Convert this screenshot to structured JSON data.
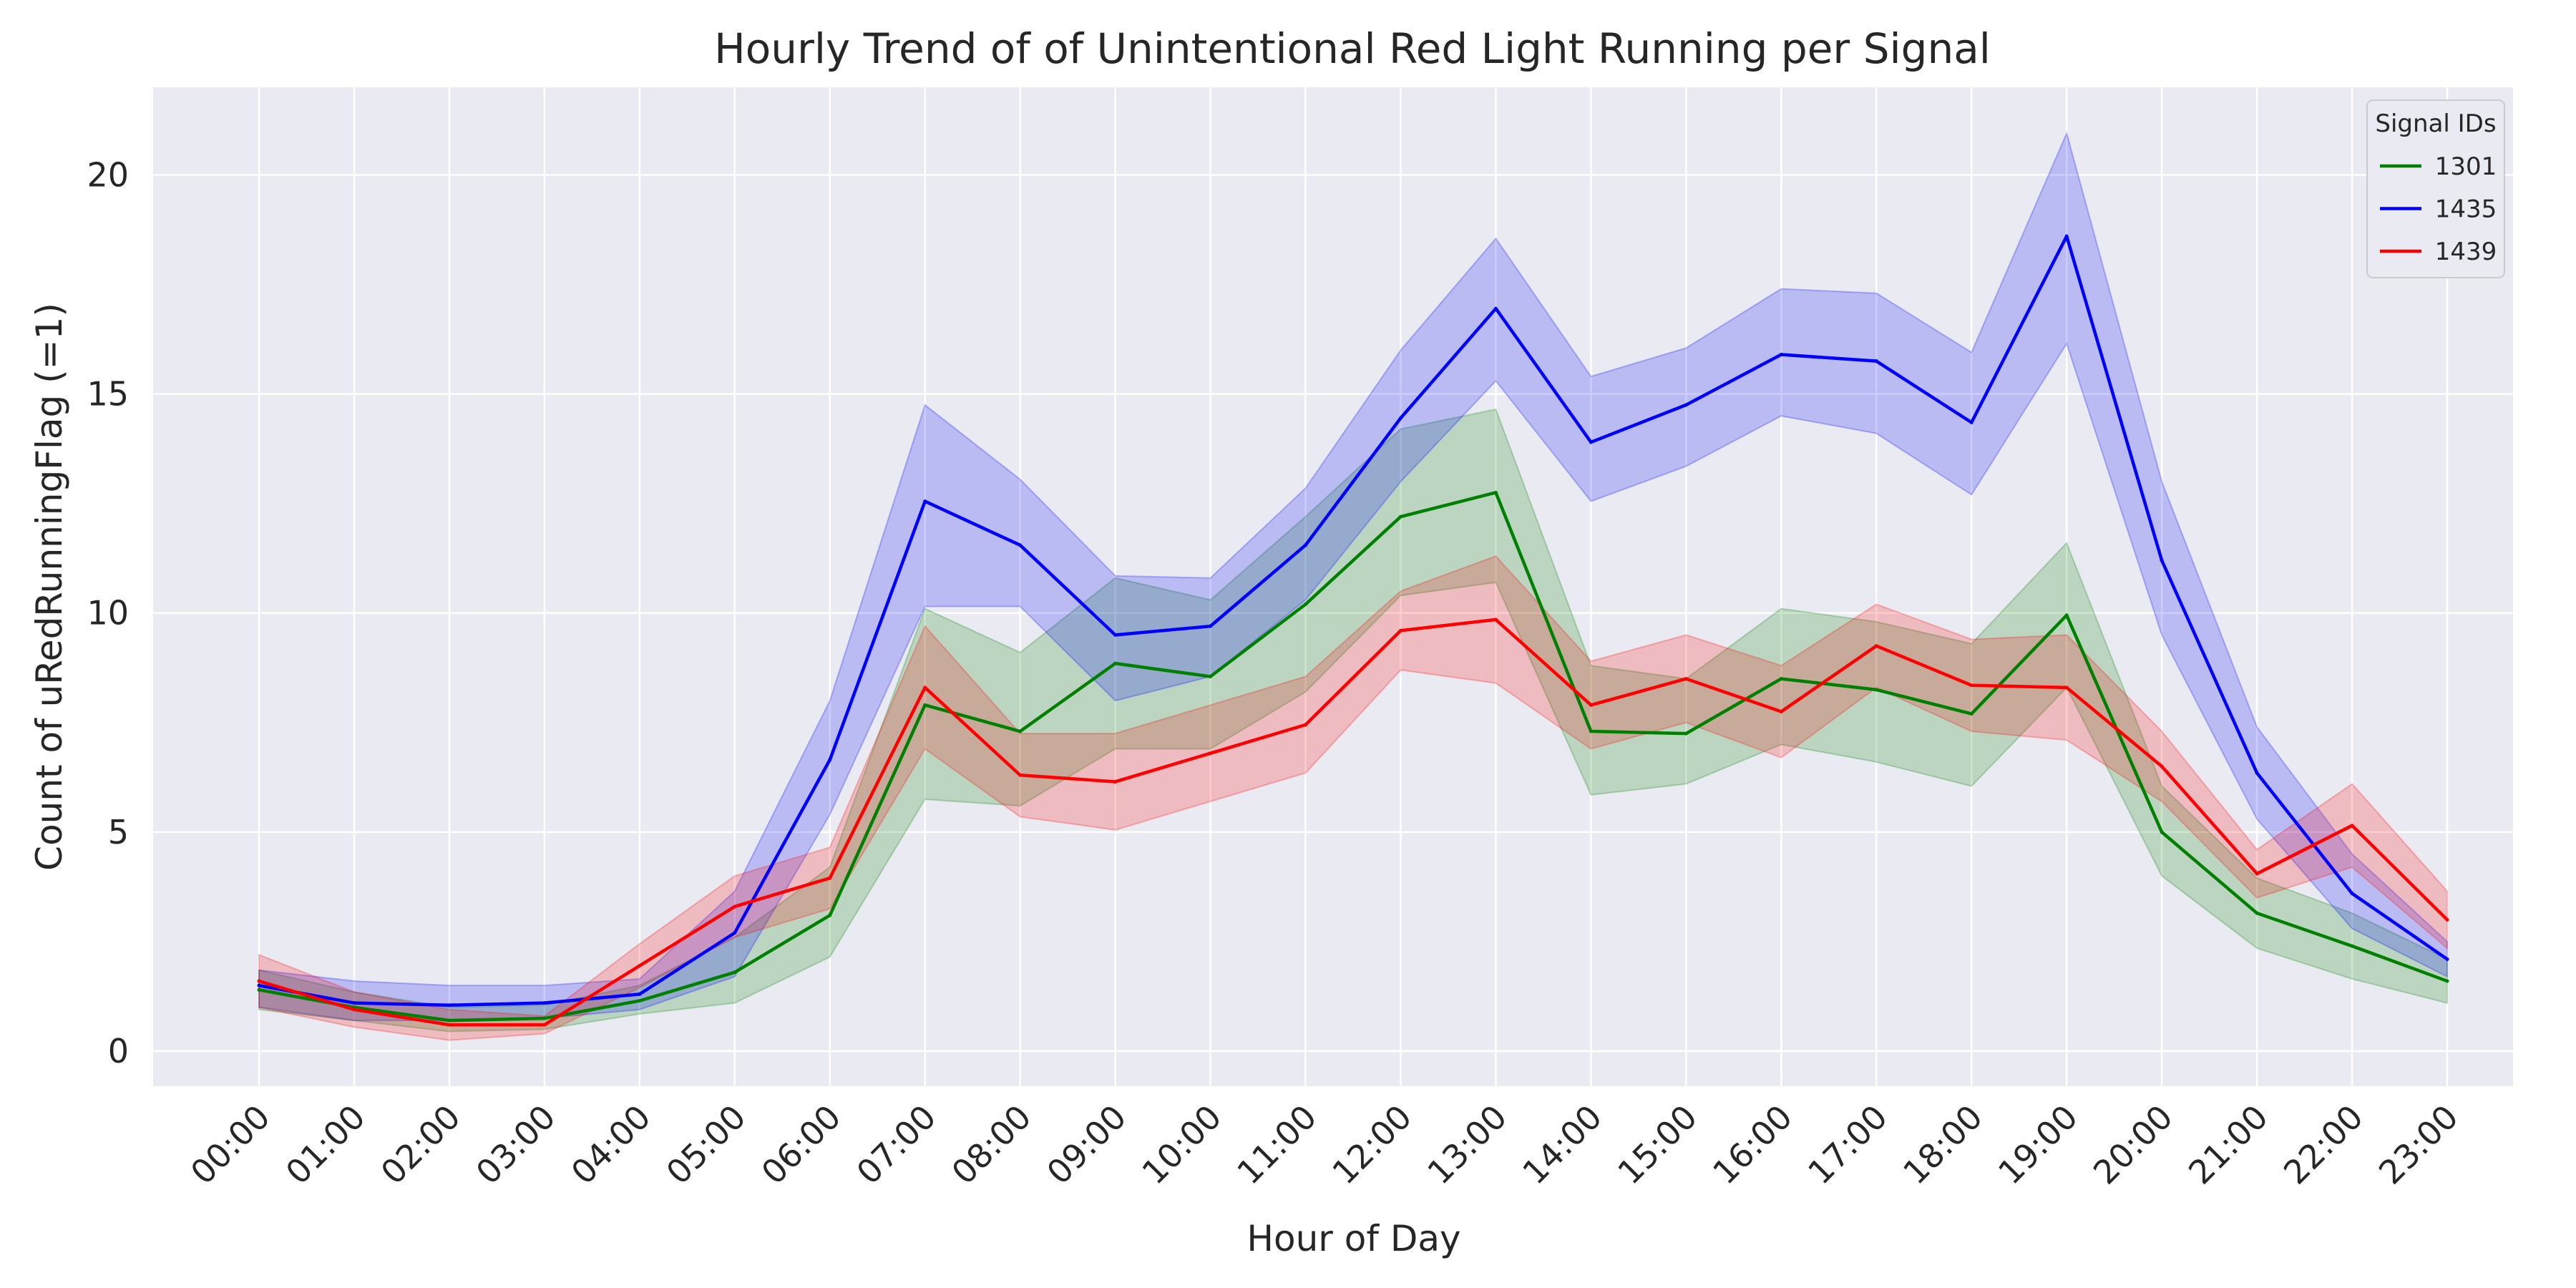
{
  "chart_data": {
    "type": "line",
    "title": "Hourly Trend of of Unintentional Red Light Running per Signal",
    "xlabel": "Hour of Day",
    "ylabel": "Count of uRedRunningFlag (=1)",
    "categories": [
      "00:00",
      "01:00",
      "02:00",
      "03:00",
      "04:00",
      "05:00",
      "06:00",
      "07:00",
      "08:00",
      "09:00",
      "10:00",
      "11:00",
      "12:00",
      "13:00",
      "14:00",
      "15:00",
      "16:00",
      "17:00",
      "18:00",
      "19:00",
      "20:00",
      "21:00",
      "22:00",
      "23:00"
    ],
    "yticks": [
      "0",
      "5",
      "10",
      "15",
      "20"
    ],
    "ylim": [
      -0.8,
      22
    ],
    "grid": true,
    "legend": {
      "title": "Signal IDs",
      "placement": "top-right"
    },
    "series": [
      {
        "name": "1301",
        "color": "#008000",
        "values": [
          1.4,
          1.0,
          0.7,
          0.75,
          1.15,
          1.8,
          3.1,
          7.9,
          7.3,
          8.85,
          8.55,
          10.2,
          12.2,
          12.75,
          7.3,
          7.25,
          8.5,
          8.25,
          7.7,
          9.95,
          5.0,
          3.15,
          2.4,
          1.6
        ],
        "lower": [
          0.95,
          0.7,
          0.45,
          0.5,
          0.85,
          1.1,
          2.15,
          5.75,
          5.6,
          6.9,
          6.9,
          8.2,
          10.4,
          10.7,
          5.85,
          6.1,
          7.0,
          6.6,
          6.05,
          8.3,
          4.0,
          2.35,
          1.65,
          1.1
        ],
        "upper": [
          1.85,
          1.35,
          1.0,
          1.05,
          1.5,
          2.6,
          4.2,
          10.1,
          9.1,
          10.8,
          10.3,
          12.2,
          14.2,
          14.65,
          8.8,
          8.5,
          10.1,
          9.8,
          9.3,
          11.6,
          6.05,
          3.95,
          3.15,
          2.1
        ]
      },
      {
        "name": "1435",
        "color": "#0000ff",
        "values": [
          1.5,
          1.1,
          1.05,
          1.1,
          1.3,
          2.7,
          6.65,
          12.55,
          11.55,
          9.5,
          9.7,
          11.55,
          14.45,
          16.95,
          13.9,
          14.75,
          15.9,
          15.75,
          14.35,
          18.6,
          11.2,
          6.35,
          3.6,
          2.1
        ],
        "lower": [
          1.0,
          0.7,
          0.7,
          0.75,
          0.95,
          1.7,
          5.4,
          10.15,
          10.15,
          8.0,
          8.55,
          10.3,
          13.0,
          15.3,
          12.55,
          13.35,
          14.5,
          14.1,
          12.7,
          16.15,
          9.5,
          5.3,
          2.8,
          1.7
        ],
        "upper": [
          1.85,
          1.6,
          1.5,
          1.5,
          1.65,
          3.65,
          8.0,
          14.75,
          13.05,
          10.85,
          10.8,
          12.85,
          16.0,
          18.55,
          15.4,
          16.05,
          17.4,
          17.3,
          15.95,
          20.95,
          13.0,
          7.4,
          4.5,
          2.5
        ]
      },
      {
        "name": "1439",
        "color": "#ff0000",
        "values": [
          1.6,
          0.95,
          0.6,
          0.6,
          1.95,
          3.3,
          3.95,
          8.3,
          6.3,
          6.15,
          6.8,
          7.45,
          9.6,
          9.85,
          7.9,
          8.5,
          7.75,
          9.25,
          8.35,
          8.3,
          6.5,
          4.05,
          5.15,
          3.0
        ],
        "lower": [
          1.0,
          0.55,
          0.25,
          0.4,
          1.45,
          2.6,
          3.25,
          6.9,
          5.35,
          5.05,
          5.7,
          6.35,
          8.7,
          8.4,
          6.9,
          7.5,
          6.7,
          8.3,
          7.3,
          7.1,
          5.7,
          3.5,
          4.2,
          2.35
        ]
      }
    ]
  }
}
